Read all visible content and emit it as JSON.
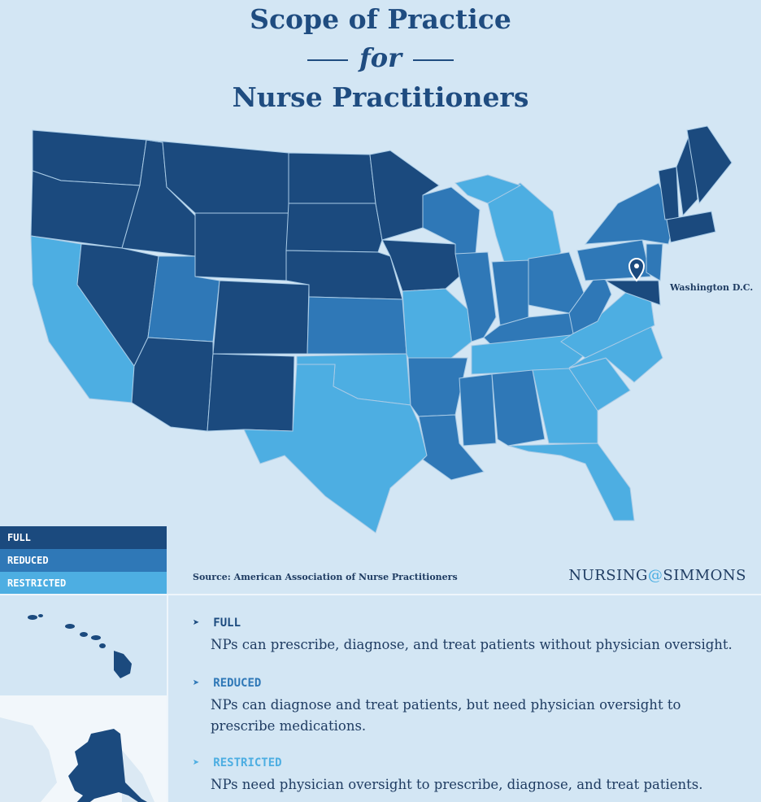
{
  "header": {
    "title_line1": "Scope of Practice",
    "title_connector": "for",
    "title_line2": "Nurse Practitioners"
  },
  "map": {
    "annotation": "Washington D.C."
  },
  "legend": {
    "items": [
      "FULL",
      "REDUCED",
      "RESTRICTED"
    ]
  },
  "footer": {
    "source": "Source: American Association of Nurse Practitioners",
    "brand": [
      "NURSING",
      "@",
      "SIMMONS"
    ]
  },
  "definitions": [
    {
      "term": "FULL",
      "text": "NPs can prescribe, diagnose, and treat patients without physician oversight."
    },
    {
      "term": "REDUCED",
      "text": "NPs can diagnose and treat patients, but need physician oversight to prescribe medications."
    },
    {
      "term": "RESTRICTED",
      "text": "NPs need physician oversight to prescribe, diagnose, and treat patients."
    }
  ]
}
